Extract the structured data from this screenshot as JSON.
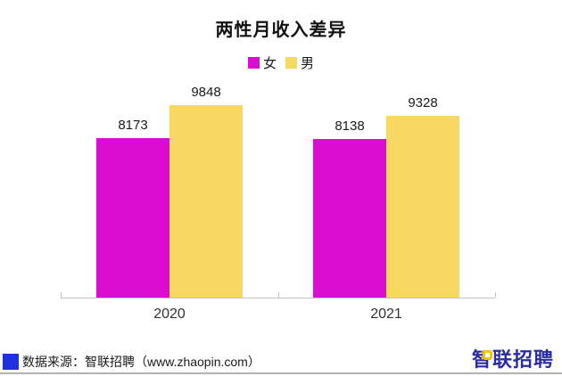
{
  "chart_data": {
    "type": "bar",
    "title": "两性月收入差异",
    "categories": [
      "2020",
      "2021"
    ],
    "series": [
      {
        "name": "女",
        "color": "#da0dd1",
        "values": [
          8173,
          8138
        ]
      },
      {
        "name": "男",
        "color": "#f7d961",
        "values": [
          9848,
          9328
        ]
      }
    ],
    "xlabel": "",
    "ylabel": "",
    "ylim": [
      0,
      10000
    ],
    "grid": false,
    "legend_position": "top",
    "value_labels": true,
    "axis_line_color": "#c4c4c4"
  },
  "footer": {
    "source_label": "数据来源：智联招聘（www.zhaopin.com）",
    "source_marker_color": "#2030e0",
    "logo_text": "智联招聘",
    "logo_color": "#2b2d9e",
    "logo_accent_color": "#f2c500"
  }
}
